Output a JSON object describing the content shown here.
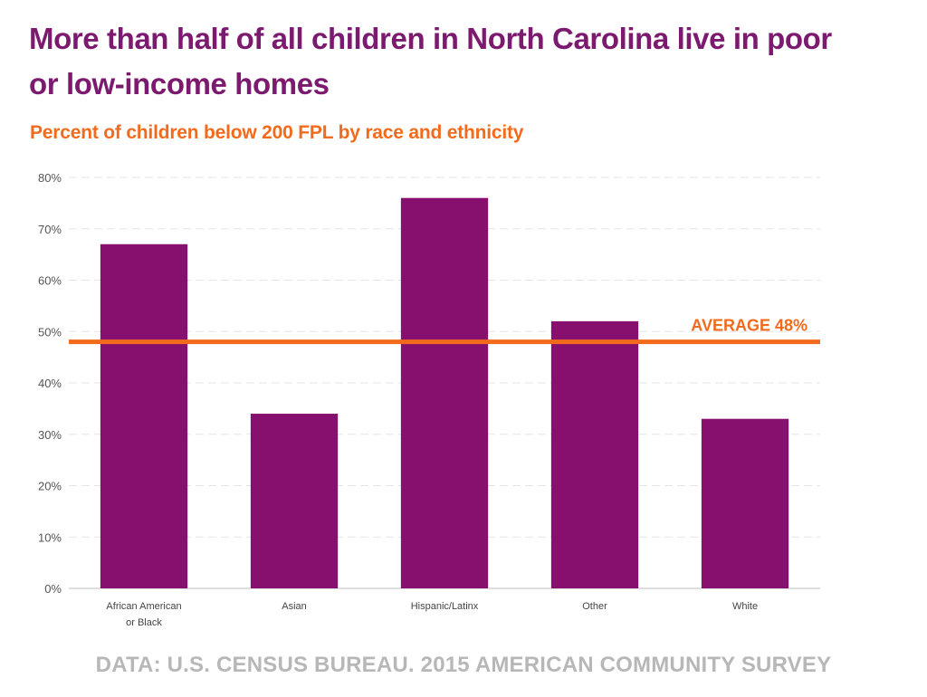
{
  "header": {
    "title": "More than half of all children in North Carolina live in poor or low-income homes",
    "subtitle": "Percent of children below 200 FPL by race and ethnicity"
  },
  "footer": {
    "source": "DATA: U.S. CENSUS BUREAU. 2015 AMERICAN COMMUNITY SURVEY"
  },
  "chart_data": {
    "type": "bar",
    "title": "More than half of all children in North Carolina live in poor or low-income homes",
    "subtitle": "Percent of children below 200 FPL by race and ethnicity",
    "categories": [
      "African American or Black",
      "Asian",
      "Hispanic/Latinx",
      "Other",
      "White"
    ],
    "category_label_lines": [
      [
        "African American",
        "or Black"
      ],
      [
        "Asian"
      ],
      [
        "Hispanic/Latinx"
      ],
      [
        "Other"
      ],
      [
        "White"
      ]
    ],
    "values": [
      67,
      34,
      76,
      52,
      33
    ],
    "ylim": [
      0,
      80
    ],
    "yticks": [
      0,
      10,
      20,
      30,
      40,
      50,
      60,
      70,
      80
    ],
    "ytick_labels": [
      "0%",
      "10%",
      "20%",
      "30%",
      "40%",
      "50%",
      "60%",
      "70%",
      "80%"
    ],
    "grid": true,
    "reference_line": {
      "value": 48,
      "label": "AVERAGE 48%"
    },
    "colors": {
      "bar": "#870f6e",
      "average_line": "#f26b1d",
      "title": "#7b1a6e",
      "subtitle": "#f26b1d",
      "grid": "#e5e5e5",
      "source": "#b7b7b7"
    },
    "source": "DATA: U.S. CENSUS BUREAU. 2015 AMERICAN COMMUNITY SURVEY"
  }
}
